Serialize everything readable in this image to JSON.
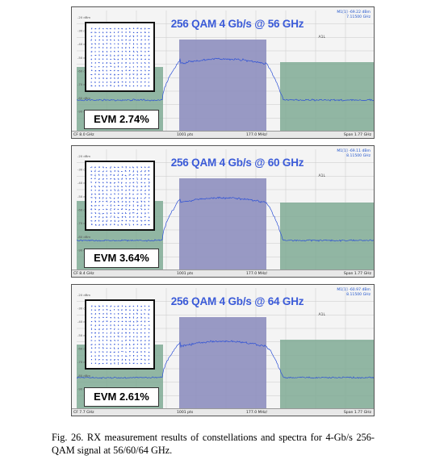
{
  "panels": [
    {
      "title": "256 QAM 4 Gb/s @ 56 GHz",
      "evm": "EVM 2.74%",
      "marker_line1": "M1[1]  -69.22 dBm",
      "marker_line2": "7.11500 GHz",
      "delta": "A1L",
      "center_freq": "CF 8.0 GHz",
      "points": "1001 pts",
      "step": "177.0 MHz/",
      "span": "Span 1.77 GHz"
    },
    {
      "title": "256 QAM 4 Gb/s @ 60 GHz",
      "evm": "EVM 3.64%",
      "marker_line1": "M1[1]  -69.11 dBm",
      "marker_line2": "8.11500 GHz",
      "delta": "A1L",
      "center_freq": "CF 8.4 GHz",
      "points": "1001 pts",
      "step": "177.0 MHz/",
      "span": "Span 1.77 GHz"
    },
    {
      "title": "256 QAM 4 Gb/s @ 64 GHz",
      "evm": "EVM 2.61%",
      "marker_line1": "M1[1]  -60.97 dBm",
      "marker_line2": "8.11500 GHz",
      "delta": "A1L",
      "center_freq": "CF 7.7 GHz",
      "points": "1001 pts",
      "step": "177.0 MHz/",
      "span": "Span 1.77 GHz"
    }
  ],
  "y_ticks": [
    "-20 dBm",
    "-30 dBm",
    "-40 dBm",
    "-50 dBm",
    "-60 dBm",
    "-70 dBm",
    "-80 dBm",
    "-90 dBm"
  ],
  "caption": "Fig. 26.  RX measurement results of constellations and spectra for 4-Gb/s 256-QAM signal at 56/60/64 GHz.",
  "colors": {
    "trace": "#2b4fd6",
    "channel_band": "#8e8fbf",
    "adjacent_band": "#7faa94",
    "title": "#3b5bd8"
  }
}
